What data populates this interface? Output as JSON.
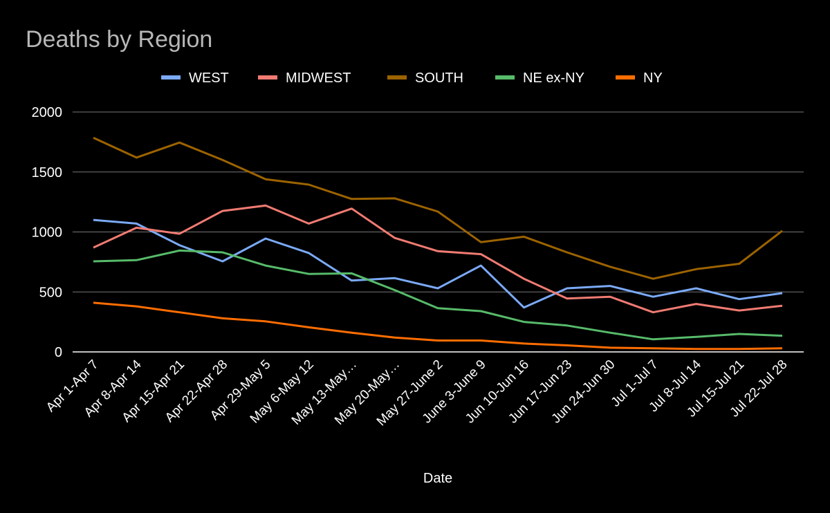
{
  "chart_data": {
    "type": "line",
    "title": "Deaths by Region",
    "xlabel": "Date",
    "ylabel": "",
    "ylim": [
      0,
      2000
    ],
    "yticks": [
      0,
      500,
      1000,
      1500,
      2000
    ],
    "grid": true,
    "legend_position": "top",
    "categories": [
      "Apr 1-Apr 7",
      "Apr 8-Apr 14",
      "Apr 15-Apr 21",
      "Apr 22-Apr 28",
      "Apr 29-May 5",
      "May 6-May 12",
      "May 13-May…",
      "May 20-May…",
      "May 27-June 2",
      "June 3-June 9",
      "Jun 10-Jun 16",
      "Jun 17-Jun 23",
      "Jun 24-Jun 30",
      "Jul 1-Jul 7",
      "Jul 8-Jul 14",
      "Jul 15-Jul 21",
      "Jul 22-Jul 28"
    ],
    "series": [
      {
        "name": "WEST",
        "color": "#7baaf7",
        "values": [
          1100,
          1070,
          890,
          755,
          945,
          825,
          595,
          615,
          530,
          720,
          370,
          530,
          550,
          460,
          530,
          440,
          490
        ]
      },
      {
        "name": "MIDWEST",
        "color": "#f07b72",
        "values": [
          870,
          1035,
          985,
          1175,
          1220,
          1070,
          1195,
          950,
          840,
          815,
          610,
          445,
          460,
          330,
          400,
          345,
          385
        ]
      },
      {
        "name": "SOUTH",
        "color": "#9c6300",
        "values": [
          1785,
          1620,
          1745,
          1600,
          1440,
          1395,
          1275,
          1280,
          1170,
          915,
          960,
          830,
          710,
          610,
          690,
          735,
          1010
        ]
      },
      {
        "name": "NE ex-NY",
        "color": "#57bb6a",
        "values": [
          755,
          765,
          845,
          830,
          720,
          650,
          655,
          515,
          365,
          340,
          250,
          220,
          160,
          105,
          125,
          150,
          135
        ]
      },
      {
        "name": "NY",
        "color": "#ff6d01",
        "values": [
          410,
          380,
          330,
          280,
          255,
          205,
          160,
          120,
          95,
          95,
          70,
          55,
          35,
          30,
          25,
          25,
          30
        ]
      }
    ]
  }
}
